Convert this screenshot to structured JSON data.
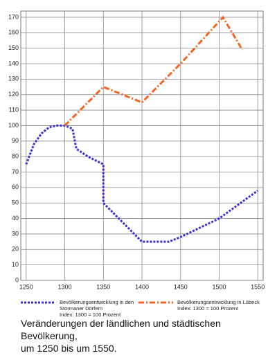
{
  "chart_data": {
    "type": "line",
    "title": "Veränderungen der ländlichen und städtischen Bevölkerung,\num 1250 bis um 1550.",
    "series": [
      {
        "name": "Bevölkerungsentwicklung in den\nStormaner Dörfern\nIndex: 1300 = 100 Prozent",
        "color": "#3b2fd9",
        "x": [
          1250,
          1260,
          1270,
          1280,
          1290,
          1300,
          1310,
          1315,
          1330,
          1350,
          1350,
          1400,
          1435,
          1450,
          1500,
          1550
        ],
        "values": [
          75,
          88,
          95,
          99,
          100,
          100,
          98,
          85,
          80,
          75,
          50,
          25,
          25,
          28,
          40,
          58
        ]
      },
      {
        "name": "Bevölkerungsentwicklung in Lübeck\nIndex: 1300 = 100 Prozent",
        "color": "#f26522",
        "x": [
          1300,
          1350,
          1400,
          1450,
          1505,
          1530
        ],
        "values": [
          100,
          125,
          115,
          140,
          170,
          149
        ]
      }
    ],
    "xlim": [
      1243,
      1557
    ],
    "xticks": [
      1250,
      1300,
      1350,
      1400,
      1450,
      1500,
      1550
    ],
    "ylim": [
      0,
      174
    ],
    "yticks": [
      0,
      10,
      20,
      30,
      40,
      50,
      60,
      70,
      80,
      90,
      100,
      110,
      120,
      130,
      140,
      150,
      160,
      170
    ],
    "grid": true
  }
}
